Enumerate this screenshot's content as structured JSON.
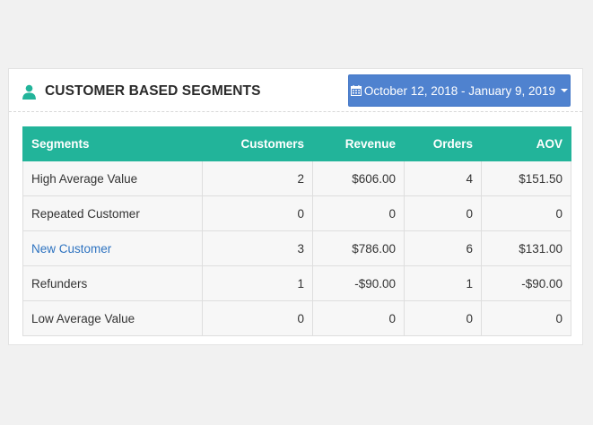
{
  "panel": {
    "title": "CUSTOMER BASED SEGMENTS",
    "title_icon": "user-icon",
    "date_range": {
      "label": "October 12, 2018 - January 9, 2019",
      "icon": "calendar-icon",
      "caret_icon": "caret-down-icon",
      "color": "#4f82cf"
    }
  },
  "table": {
    "header_color": "#22b49a",
    "columns": [
      "Segments",
      "Customers",
      "Revenue",
      "Orders",
      "AOV"
    ],
    "rows": [
      {
        "segment": "High Average Value",
        "customers": "2",
        "revenue": "$606.00",
        "orders": "4",
        "aov": "$151.50"
      },
      {
        "segment": "Repeated Customer",
        "customers": "0",
        "revenue": "0",
        "orders": "0",
        "aov": "0"
      },
      {
        "segment": "New Customer",
        "customers": "3",
        "revenue": "$786.00",
        "orders": "6",
        "aov": "$131.00"
      },
      {
        "segment": "Refunders",
        "customers": "1",
        "revenue": "-$90.00",
        "orders": "1",
        "aov": "-$90.00"
      },
      {
        "segment": "Low Average Value",
        "customers": "0",
        "revenue": "0",
        "orders": "0",
        "aov": "0"
      }
    ]
  }
}
